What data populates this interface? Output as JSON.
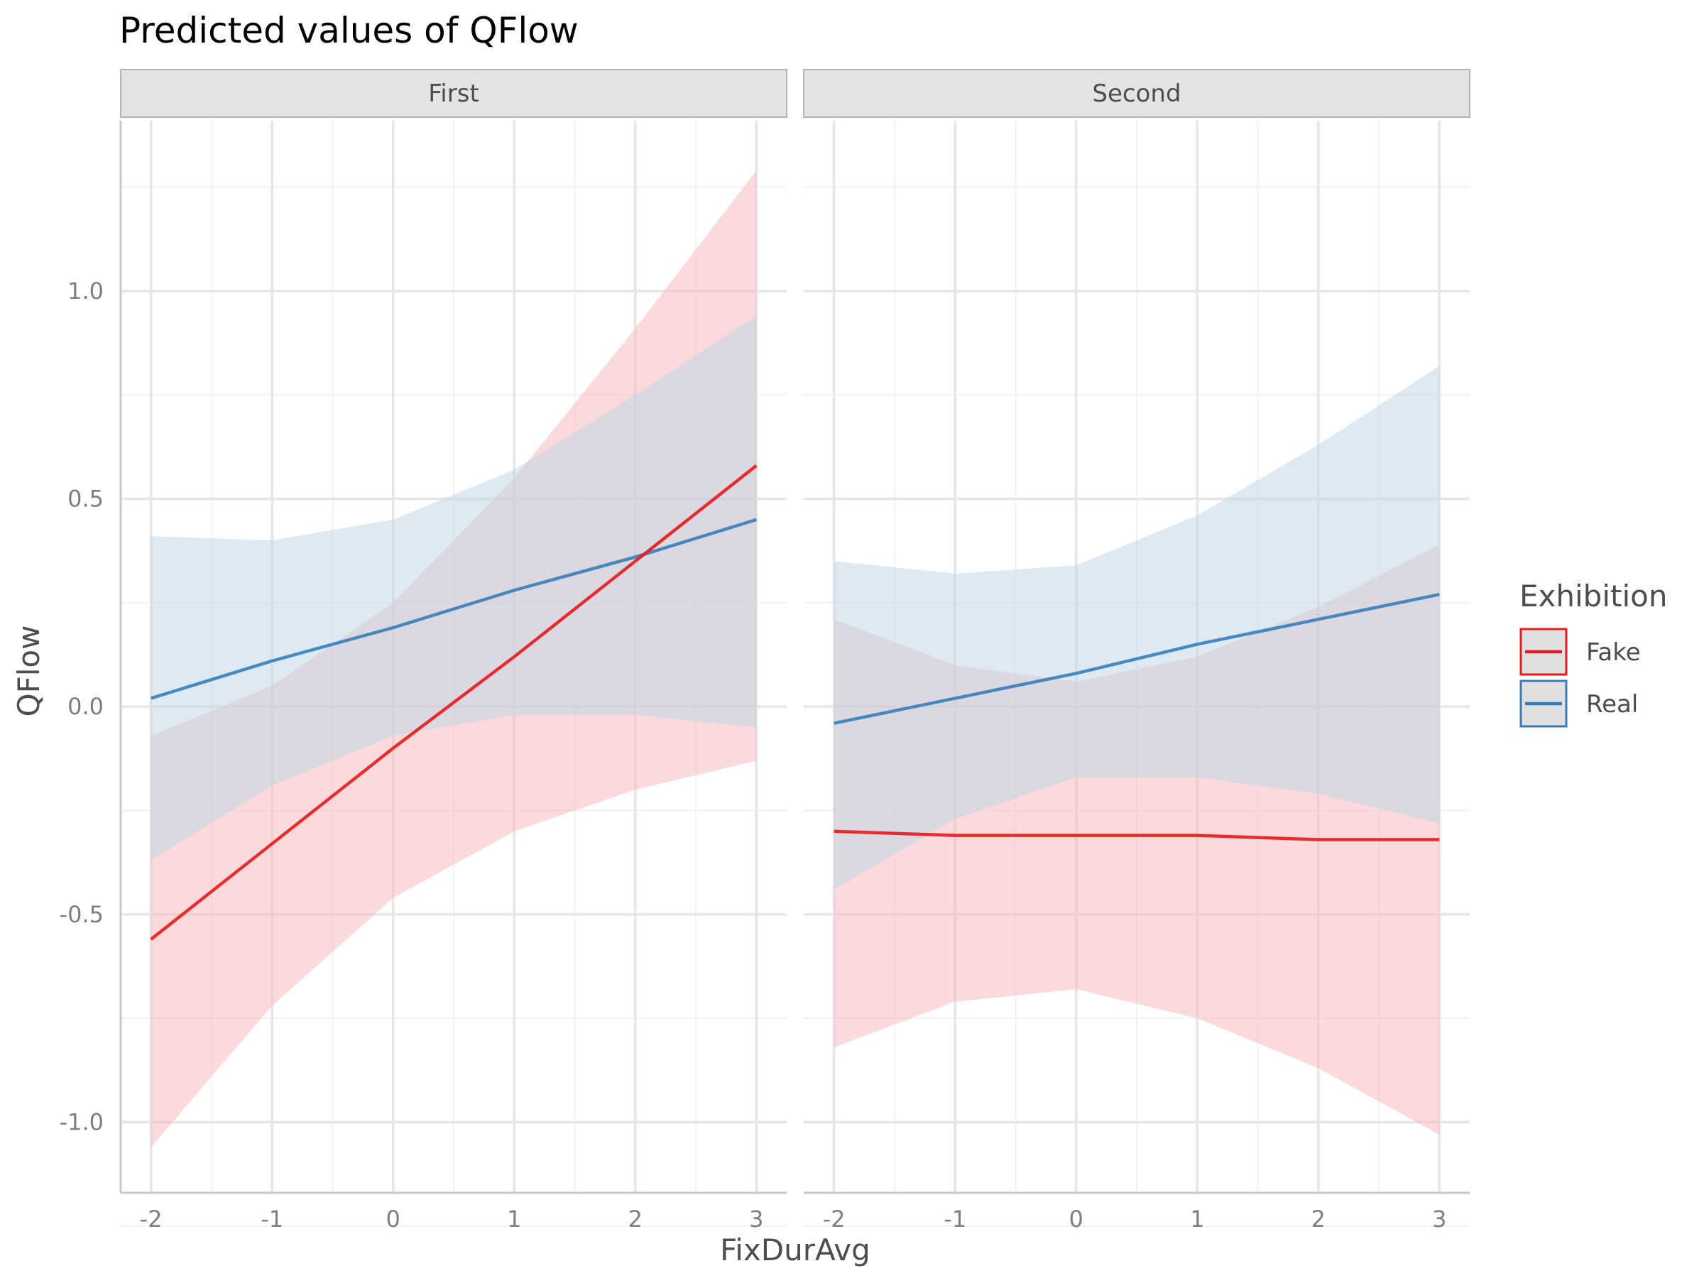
{
  "chart_data": {
    "type": "line",
    "title": "Predicted values of QFlow",
    "xlabel": "FixDurAvg",
    "ylabel": "QFlow",
    "xlim": [
      -2.25,
      3.25
    ],
    "ylim": [
      -1.17,
      1.41
    ],
    "x_ticks": [
      "-2",
      "-1",
      "0",
      "1",
      "2",
      "3"
    ],
    "y_ticks": [
      "-1.0",
      "-0.5",
      "0.0",
      "0.5",
      "1.0"
    ],
    "legend": {
      "title": "Exhibition",
      "position": "right",
      "entries": [
        "Fake",
        "Real"
      ]
    },
    "colors": {
      "Fake": "#e41a1c",
      "Real": "#377eb8",
      "ribbon_Fake": "#f5b5b8",
      "ribbon_Real": "#bcd5ea",
      "strip_bg": "#e3e3e3",
      "strip_border": "#b3b3b3",
      "grid_major": "#e6e6e6",
      "grid_minor": "#f2f2f2",
      "axis_line": "#c8c8c8"
    },
    "facets": [
      {
        "label": "First",
        "series": [
          {
            "name": "Fake",
            "x": [
              -2,
              -1,
              0,
              1,
              2,
              3
            ],
            "y": [
              -0.56,
              -0.33,
              -0.1,
              0.12,
              0.35,
              0.58
            ],
            "lower": [
              -1.06,
              -0.72,
              -0.46,
              -0.3,
              -0.2,
              -0.13
            ],
            "upper": [
              -0.07,
              0.05,
              0.25,
              0.55,
              0.91,
              1.29
            ]
          },
          {
            "name": "Real",
            "x": [
              -2,
              -1,
              0,
              1,
              2,
              3
            ],
            "y": [
              0.02,
              0.11,
              0.19,
              0.28,
              0.36,
              0.45
            ],
            "lower": [
              -0.37,
              -0.19,
              -0.07,
              -0.02,
              -0.02,
              -0.05
            ],
            "upper": [
              0.41,
              0.4,
              0.45,
              0.57,
              0.75,
              0.94
            ]
          }
        ]
      },
      {
        "label": "Second",
        "series": [
          {
            "name": "Fake",
            "x": [
              -2,
              -1,
              0,
              1,
              2,
              3
            ],
            "y": [
              -0.3,
              -0.31,
              -0.31,
              -0.31,
              -0.32,
              -0.32
            ],
            "lower": [
              -0.82,
              -0.71,
              -0.68,
              -0.75,
              -0.87,
              -1.03
            ],
            "upper": [
              0.21,
              0.1,
              0.06,
              0.12,
              0.24,
              0.39
            ]
          },
          {
            "name": "Real",
            "x": [
              -2,
              -1,
              0,
              1,
              2,
              3
            ],
            "y": [
              -0.04,
              0.02,
              0.08,
              0.15,
              0.21,
              0.27
            ],
            "lower": [
              -0.44,
              -0.27,
              -0.17,
              -0.17,
              -0.21,
              -0.28
            ],
            "upper": [
              0.35,
              0.32,
              0.34,
              0.46,
              0.63,
              0.82
            ]
          }
        ]
      }
    ]
  }
}
